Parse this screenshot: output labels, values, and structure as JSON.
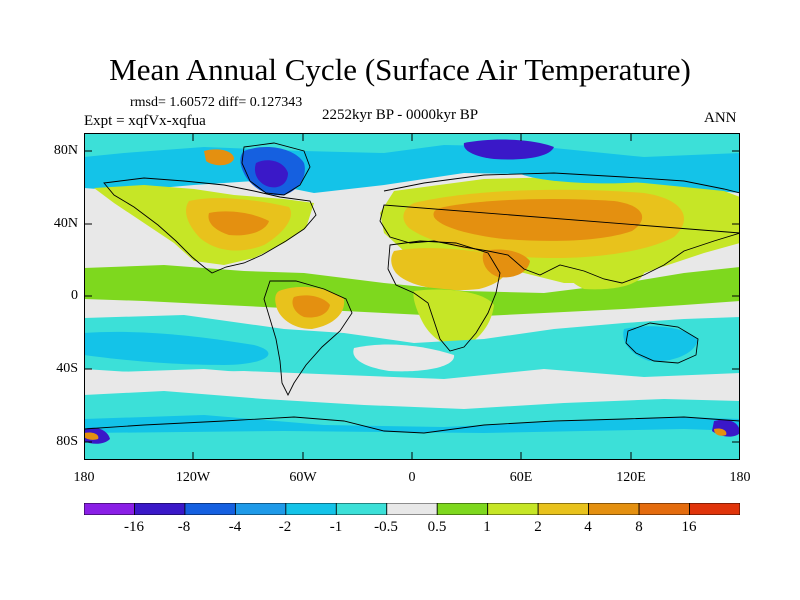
{
  "title": "Mean Annual Cycle (Surface Air Temperature)",
  "stats": "rmsd= 1.60572  diff= 0.127343",
  "experiment": "Expt = xqfVx-xqfua",
  "period": "2252kyr BP - 0000kyr BP",
  "season": "ANN",
  "axes": {
    "y_ticks": [
      "80N",
      "40N",
      "0",
      "40S",
      "80S"
    ],
    "x_ticks": [
      "180",
      "120W",
      "60W",
      "0",
      "60E",
      "120E",
      "180"
    ]
  },
  "colorbar": {
    "labels": [
      "-16",
      "-8",
      "-4",
      "-2",
      "-1",
      "-0.5",
      "0.5",
      "1",
      "2",
      "4",
      "8",
      "16"
    ],
    "colors": [
      "#8a1fe6",
      "#3a18c8",
      "#1560e0",
      "#1f9ae8",
      "#14c3e8",
      "#3ce0d8",
      "#e8e8e8",
      "#7ed81e",
      "#c6e626",
      "#e8c21c",
      "#e49010",
      "#e46c0e",
      "#e0340a"
    ]
  },
  "map_colors": {
    "ocean_base": "#e8e8e8",
    "warm_1": "#c6e626",
    "warm_2": "#e8c21c",
    "warm_3": "#e49010",
    "warm_4": "#e46c0e",
    "green": "#7ed81e",
    "cool_1": "#3ce0d8",
    "cool_2": "#14c3e8",
    "cool_3": "#1f9ae8",
    "cool_4": "#1560e0",
    "cool_5": "#3a18c8"
  }
}
